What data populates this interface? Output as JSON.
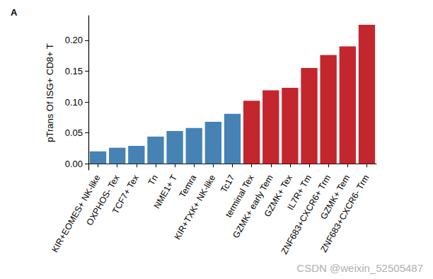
{
  "chart_data": {
    "type": "bar",
    "title": "A",
    "y_label": "pTrans Of ISG+ CD8+ T",
    "annotations": [
      "CSDN @weixin_52505487"
    ],
    "categories": [
      "KIR+EOMES+ NK-like",
      "OXPHOS- Tex",
      "TCF7+ Tex",
      "Tn",
      "NME1+ T",
      "Temra",
      "KIR+TXK+ NK-like",
      "Tc17",
      "terminal Tex",
      "GZMK+ early Tem",
      "GZMK+ Tex",
      "IL7R+ Tm",
      "ZNF683+CXCR6+ Trm",
      "GZMK+ Tem",
      "ZNF683+CXCR6- Trm"
    ],
    "values": [
      0.02,
      0.026,
      0.029,
      0.044,
      0.053,
      0.058,
      0.068,
      0.081,
      0.102,
      0.119,
      0.123,
      0.155,
      0.176,
      0.19,
      0.225
    ],
    "colors": [
      "#4682b4",
      "#4682b4",
      "#4682b4",
      "#4682b4",
      "#4682b4",
      "#4682b4",
      "#4682b4",
      "#4682b4",
      "#c4262e",
      "#c4262e",
      "#c4262e",
      "#c4262e",
      "#c4262e",
      "#c4262e",
      "#c4262e"
    ],
    "ylim": [
      -0.01,
      0.24
    ],
    "yticks": [
      {
        "value": 0,
        "label": "0.00"
      },
      {
        "value": 0.05,
        "label": "0.05"
      },
      {
        "value": 0.1,
        "label": "0.10"
      },
      {
        "value": 0.15,
        "label": "0.15"
      },
      {
        "value": 0.2,
        "label": "0.20"
      }
    ],
    "grid": false
  }
}
